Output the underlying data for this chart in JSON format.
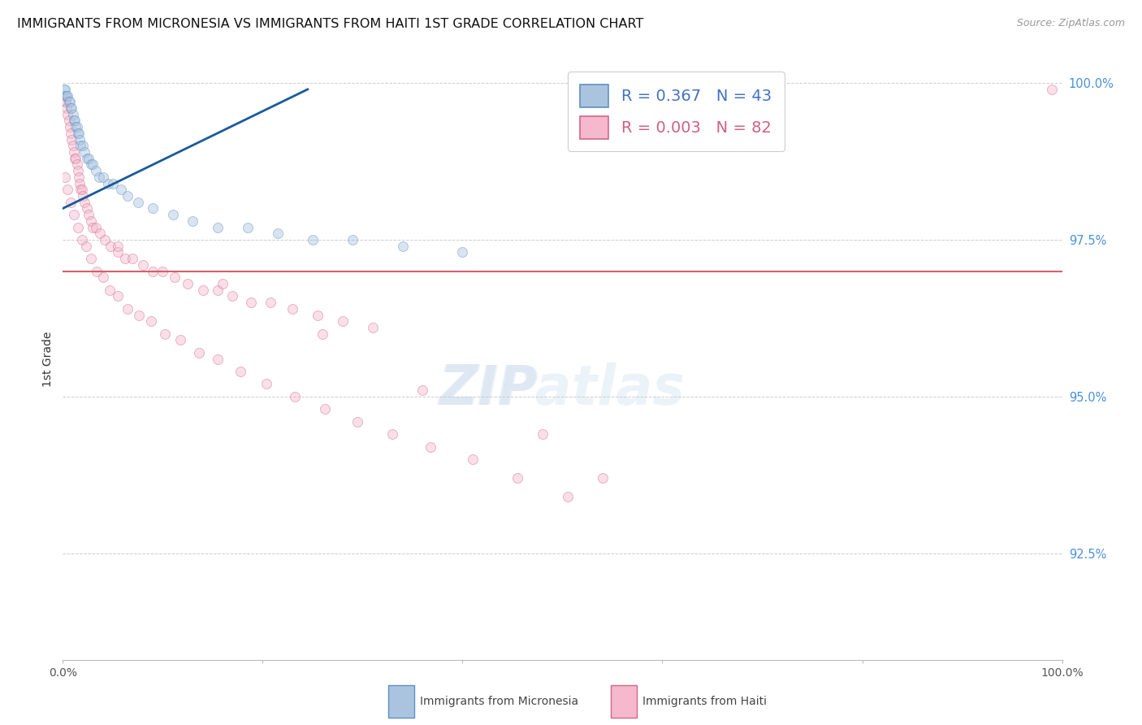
{
  "title": "IMMIGRANTS FROM MICRONESIA VS IMMIGRANTS FROM HAITI 1ST GRADE CORRELATION CHART",
  "source": "Source: ZipAtlas.com",
  "ylabel": "1st Grade",
  "R1": "0.367",
  "N1": "43",
  "R2": "0.003",
  "N2": "82",
  "color_blue_fill": "#aac4e0",
  "color_blue_edge": "#6090c0",
  "color_blue_line": "#1a5a9a",
  "color_pink_fill": "#f5b8cc",
  "color_pink_edge": "#d06888",
  "color_pink_line": "#d06070",
  "xlim": [
    0.0,
    1.0
  ],
  "ylim": [
    0.908,
    1.004
  ],
  "yticks": [
    0.925,
    0.95,
    0.975,
    1.0
  ],
  "ytick_labels": [
    "92.5%",
    "95.0%",
    "97.5%",
    "100.0%"
  ],
  "xticks": [
    0.0,
    0.2,
    0.4,
    0.6,
    0.8,
    1.0
  ],
  "xtick_labels": [
    "0.0%",
    "",
    "",
    "",
    "",
    "100.0%"
  ],
  "micronesia_x": [
    0.001,
    0.002,
    0.003,
    0.004,
    0.005,
    0.006,
    0.007,
    0.008,
    0.009,
    0.01,
    0.011,
    0.012,
    0.013,
    0.014,
    0.015,
    0.016,
    0.017,
    0.018,
    0.02,
    0.022,
    0.024,
    0.026,
    0.028,
    0.03,
    0.033,
    0.036,
    0.04,
    0.045,
    0.05,
    0.058,
    0.065,
    0.075,
    0.09,
    0.11,
    0.13,
    0.155,
    0.185,
    0.215,
    0.25,
    0.29,
    0.34,
    0.4,
    0.6
  ],
  "micronesia_y": [
    0.999,
    0.999,
    0.998,
    0.998,
    0.998,
    0.997,
    0.997,
    0.996,
    0.996,
    0.995,
    0.994,
    0.994,
    0.993,
    0.993,
    0.992,
    0.992,
    0.991,
    0.99,
    0.99,
    0.989,
    0.988,
    0.988,
    0.987,
    0.987,
    0.986,
    0.985,
    0.985,
    0.984,
    0.984,
    0.983,
    0.982,
    0.981,
    0.98,
    0.979,
    0.978,
    0.977,
    0.977,
    0.976,
    0.975,
    0.975,
    0.974,
    0.973,
    0.999
  ],
  "haiti_x": [
    0.001,
    0.002,
    0.003,
    0.004,
    0.005,
    0.006,
    0.007,
    0.008,
    0.009,
    0.01,
    0.011,
    0.012,
    0.013,
    0.014,
    0.015,
    0.016,
    0.017,
    0.018,
    0.019,
    0.02,
    0.022,
    0.024,
    0.026,
    0.028,
    0.03,
    0.033,
    0.037,
    0.042,
    0.048,
    0.055,
    0.062,
    0.07,
    0.08,
    0.09,
    0.1,
    0.112,
    0.125,
    0.14,
    0.155,
    0.17,
    0.188,
    0.208,
    0.23,
    0.255,
    0.28,
    0.31,
    0.002,
    0.005,
    0.008,
    0.011,
    0.015,
    0.019,
    0.023,
    0.028,
    0.034,
    0.04,
    0.047,
    0.055,
    0.065,
    0.076,
    0.088,
    0.102,
    0.118,
    0.136,
    0.155,
    0.178,
    0.204,
    0.232,
    0.262,
    0.295,
    0.33,
    0.368,
    0.41,
    0.455,
    0.505,
    0.055,
    0.16,
    0.26,
    0.36,
    0.48,
    0.54,
    0.99
  ],
  "haiti_y": [
    0.998,
    0.997,
    0.997,
    0.996,
    0.995,
    0.994,
    0.993,
    0.992,
    0.991,
    0.99,
    0.989,
    0.988,
    0.988,
    0.987,
    0.986,
    0.985,
    0.984,
    0.983,
    0.983,
    0.982,
    0.981,
    0.98,
    0.979,
    0.978,
    0.977,
    0.977,
    0.976,
    0.975,
    0.974,
    0.973,
    0.972,
    0.972,
    0.971,
    0.97,
    0.97,
    0.969,
    0.968,
    0.967,
    0.967,
    0.966,
    0.965,
    0.965,
    0.964,
    0.963,
    0.962,
    0.961,
    0.985,
    0.983,
    0.981,
    0.979,
    0.977,
    0.975,
    0.974,
    0.972,
    0.97,
    0.969,
    0.967,
    0.966,
    0.964,
    0.963,
    0.962,
    0.96,
    0.959,
    0.957,
    0.956,
    0.954,
    0.952,
    0.95,
    0.948,
    0.946,
    0.944,
    0.942,
    0.94,
    0.937,
    0.934,
    0.974,
    0.968,
    0.96,
    0.951,
    0.944,
    0.937,
    0.999
  ],
  "blue_line_x0": 0.0,
  "blue_line_x1": 0.245,
  "blue_line_y0": 0.98,
  "blue_line_y1": 0.999,
  "pink_line_y": 0.97,
  "background": "#ffffff",
  "grid_color": "#c8c8c8",
  "title_fontsize": 11.5,
  "legend_label1": "Immigrants from Micronesia",
  "legend_label2": "Immigrants from Haiti",
  "dot_size": 75,
  "dot_alpha": 0.45
}
